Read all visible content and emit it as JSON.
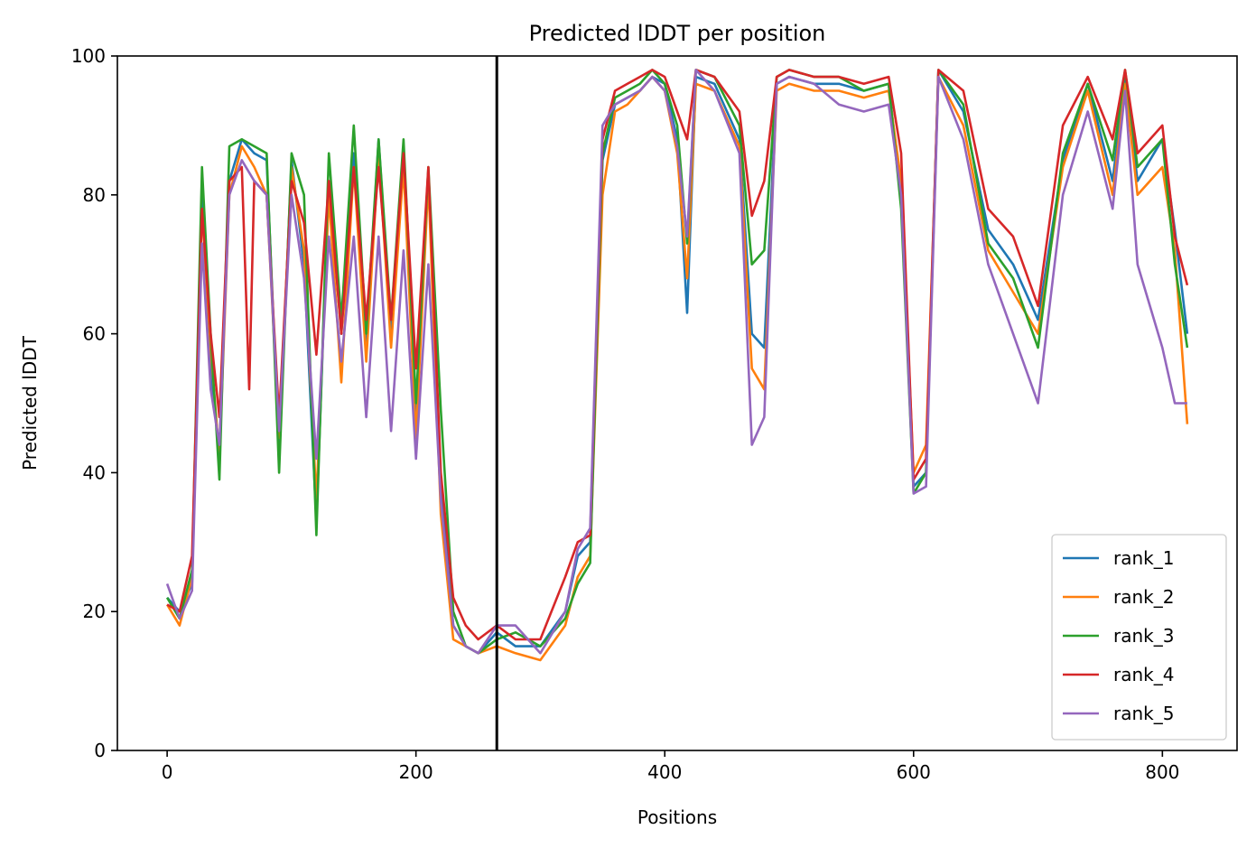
{
  "chart_data": {
    "type": "line",
    "title": "Predicted lDDT per position",
    "xlabel": "Positions",
    "ylabel": "Predicted lDDT",
    "xlim": [
      -40,
      860
    ],
    "ylim": [
      0,
      100
    ],
    "xticks": [
      0,
      200,
      400,
      600,
      800
    ],
    "yticks": [
      0,
      20,
      40,
      60,
      80,
      100
    ],
    "legend_position": "lower-right",
    "grid": false,
    "vline": {
      "x": 265,
      "color": "#000000"
    },
    "series": [
      {
        "name": "rank_1",
        "color": "#1f77b4",
        "x": [
          0,
          10,
          20,
          28,
          35,
          42,
          50,
          60,
          70,
          80,
          90,
          100,
          110,
          120,
          130,
          140,
          150,
          160,
          170,
          180,
          190,
          200,
          210,
          220,
          230,
          240,
          250,
          265,
          280,
          300,
          320,
          330,
          340,
          350,
          360,
          370,
          380,
          390,
          400,
          410,
          418,
          425,
          440,
          460,
          470,
          480,
          490,
          500,
          520,
          540,
          560,
          580,
          590,
          600,
          610,
          620,
          640,
          660,
          680,
          700,
          720,
          740,
          760,
          770,
          780,
          800,
          810,
          820
        ],
        "values": [
          22,
          20,
          24,
          80,
          55,
          43,
          82,
          88,
          86,
          85,
          43,
          85,
          70,
          33,
          82,
          60,
          86,
          58,
          88,
          60,
          86,
          48,
          83,
          38,
          18,
          15,
          14,
          17,
          15,
          15,
          20,
          28,
          30,
          85,
          93,
          94,
          95,
          97,
          96,
          88,
          63,
          97,
          96,
          88,
          60,
          58,
          96,
          97,
          96,
          96,
          95,
          96,
          80,
          38,
          40,
          98,
          92,
          75,
          70,
          62,
          85,
          96,
          82,
          97,
          82,
          88,
          75,
          60
        ]
      },
      {
        "name": "rank_2",
        "color": "#ff7f0e",
        "x": [
          0,
          10,
          20,
          28,
          35,
          42,
          50,
          60,
          70,
          80,
          90,
          100,
          110,
          120,
          130,
          140,
          150,
          160,
          170,
          180,
          190,
          200,
          210,
          220,
          230,
          240,
          250,
          265,
          280,
          300,
          320,
          330,
          340,
          350,
          360,
          370,
          380,
          390,
          400,
          410,
          418,
          425,
          440,
          460,
          470,
          480,
          490,
          500,
          520,
          540,
          560,
          580,
          590,
          600,
          610,
          620,
          640,
          660,
          680,
          700,
          720,
          740,
          760,
          770,
          780,
          800,
          810,
          820
        ],
        "values": [
          21,
          18,
          25,
          78,
          58,
          42,
          80,
          87,
          84,
          80,
          45,
          84,
          72,
          36,
          80,
          53,
          84,
          56,
          86,
          58,
          84,
          45,
          82,
          34,
          16,
          15,
          14,
          15,
          14,
          13,
          18,
          25,
          28,
          80,
          92,
          93,
          95,
          97,
          95,
          86,
          68,
          96,
          95,
          87,
          55,
          52,
          95,
          96,
          95,
          95,
          94,
          95,
          82,
          40,
          44,
          97,
          90,
          72,
          66,
          60,
          84,
          95,
          80,
          96,
          80,
          84,
          72,
          47
        ]
      },
      {
        "name": "rank_3",
        "color": "#2ca02c",
        "x": [
          0,
          10,
          20,
          28,
          35,
          42,
          50,
          60,
          70,
          80,
          90,
          100,
          110,
          120,
          130,
          140,
          150,
          160,
          170,
          180,
          190,
          200,
          210,
          220,
          230,
          240,
          250,
          265,
          280,
          300,
          320,
          330,
          340,
          350,
          360,
          370,
          380,
          390,
          400,
          410,
          418,
          425,
          440,
          460,
          470,
          480,
          490,
          500,
          520,
          540,
          560,
          580,
          590,
          600,
          610,
          620,
          640,
          660,
          680,
          700,
          720,
          740,
          760,
          770,
          780,
          800,
          810,
          820
        ],
        "values": [
          22,
          19,
          26,
          84,
          60,
          39,
          87,
          88,
          87,
          86,
          40,
          86,
          80,
          31,
          86,
          62,
          90,
          60,
          88,
          62,
          88,
          50,
          84,
          49,
          20,
          15,
          14,
          16,
          17,
          15,
          19,
          24,
          27,
          86,
          94,
          95,
          96,
          98,
          96,
          90,
          73,
          98,
          97,
          90,
          70,
          72,
          97,
          98,
          97,
          97,
          95,
          96,
          78,
          37,
          40,
          98,
          93,
          73,
          68,
          58,
          86,
          96,
          85,
          98,
          84,
          88,
          70,
          58
        ]
      },
      {
        "name": "rank_4",
        "color": "#d62728",
        "x": [
          0,
          10,
          20,
          28,
          35,
          42,
          50,
          60,
          66,
          70,
          80,
          90,
          100,
          110,
          120,
          130,
          140,
          150,
          160,
          170,
          180,
          190,
          200,
          210,
          220,
          230,
          240,
          250,
          265,
          280,
          300,
          320,
          330,
          340,
          350,
          360,
          370,
          380,
          390,
          400,
          410,
          418,
          425,
          440,
          460,
          470,
          480,
          490,
          500,
          520,
          540,
          560,
          580,
          590,
          600,
          610,
          620,
          640,
          660,
          680,
          700,
          720,
          740,
          760,
          770,
          780,
          800,
          810,
          820
        ],
        "values": [
          21,
          20,
          28,
          78,
          60,
          48,
          82,
          84,
          52,
          82,
          80,
          48,
          82,
          76,
          57,
          82,
          60,
          84,
          62,
          84,
          62,
          86,
          55,
          84,
          40,
          22,
          18,
          16,
          18,
          16,
          16,
          25,
          30,
          31,
          88,
          95,
          96,
          97,
          98,
          97,
          92,
          88,
          98,
          97,
          92,
          77,
          82,
          97,
          98,
          97,
          97,
          96,
          97,
          86,
          39,
          42,
          98,
          95,
          78,
          74,
          64,
          90,
          97,
          88,
          98,
          86,
          90,
          74,
          67
        ]
      },
      {
        "name": "rank_5",
        "color": "#9467bd",
        "x": [
          0,
          10,
          20,
          28,
          35,
          42,
          50,
          60,
          70,
          80,
          90,
          100,
          110,
          120,
          130,
          140,
          150,
          160,
          170,
          180,
          190,
          200,
          210,
          220,
          230,
          240,
          250,
          265,
          280,
          300,
          320,
          330,
          340,
          350,
          360,
          370,
          380,
          390,
          400,
          410,
          418,
          425,
          440,
          460,
          470,
          480,
          490,
          500,
          520,
          540,
          560,
          580,
          590,
          600,
          610,
          620,
          640,
          660,
          680,
          700,
          720,
          740,
          760,
          770,
          780,
          800,
          810,
          820
        ],
        "values": [
          24,
          19,
          23,
          73,
          52,
          44,
          80,
          85,
          82,
          80,
          46,
          80,
          68,
          42,
          74,
          56,
          74,
          48,
          74,
          46,
          72,
          42,
          70,
          36,
          18,
          15,
          14,
          18,
          18,
          14,
          20,
          29,
          32,
          90,
          93,
          94,
          95,
          97,
          95,
          87,
          74,
          98,
          95,
          86,
          44,
          48,
          96,
          97,
          96,
          93,
          92,
          93,
          80,
          37,
          38,
          97,
          88,
          70,
          60,
          50,
          80,
          92,
          78,
          95,
          70,
          58,
          50,
          50
        ]
      }
    ]
  }
}
